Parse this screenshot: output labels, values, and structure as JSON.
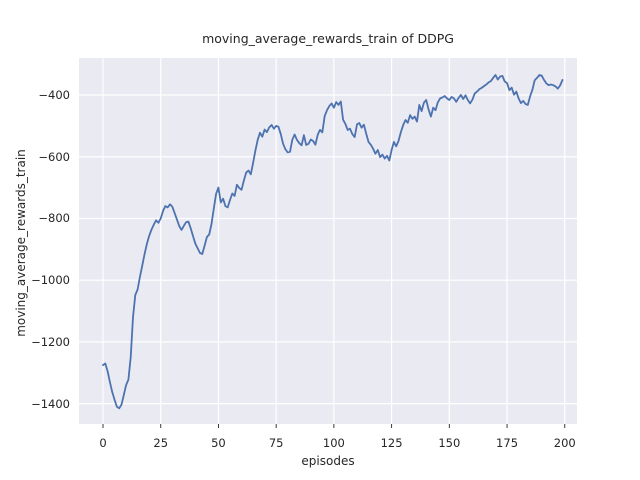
{
  "figure": {
    "title": "moving_average_rewards_train of DDPG",
    "xlabel": "episodes",
    "ylabel": "moving_average_rewards_train"
  },
  "axes": {
    "x_tick_labels": [
      "0",
      "25",
      "50",
      "75",
      "100",
      "125",
      "150",
      "175",
      "200"
    ],
    "y_tick_labels": [
      "−400",
      "−600",
      "−800",
      "−1000",
      "−1200",
      "−1400"
    ]
  },
  "colors": {
    "figure_bg": "#ffffff",
    "axes_bg": "#eaeaf2",
    "grid": "#ffffff",
    "line": "#4c72b0",
    "text": "#262626",
    "tick_mark": "#262626"
  },
  "chart_data": {
    "type": "line",
    "title": "moving_average_rewards_train of DDPG",
    "xlabel": "episodes",
    "ylabel": "moving_average_rewards_train",
    "legend": null,
    "grid": true,
    "x_tick_values": [
      0,
      25,
      50,
      75,
      100,
      125,
      150,
      175,
      200
    ],
    "y_tick_values": [
      -400,
      -600,
      -800,
      -1000,
      -1200,
      -1400
    ],
    "xlim": [
      -10.4,
      205.3
    ],
    "ylim": [
      -1466,
      -280
    ],
    "x_note": "x value = episode index of each point, 0..199",
    "values": [
      -1275,
      -1270,
      -1295,
      -1330,
      -1362,
      -1388,
      -1410,
      -1415,
      -1403,
      -1372,
      -1340,
      -1322,
      -1250,
      -1120,
      -1048,
      -1030,
      -988,
      -952,
      -915,
      -882,
      -856,
      -836,
      -820,
      -806,
      -814,
      -800,
      -776,
      -760,
      -764,
      -754,
      -762,
      -782,
      -803,
      -824,
      -837,
      -824,
      -812,
      -810,
      -832,
      -858,
      -882,
      -897,
      -912,
      -915,
      -888,
      -860,
      -852,
      -818,
      -768,
      -720,
      -700,
      -748,
      -736,
      -760,
      -764,
      -740,
      -719,
      -727,
      -691,
      -701,
      -707,
      -678,
      -651,
      -645,
      -657,
      -620,
      -580,
      -545,
      -522,
      -535,
      -512,
      -520,
      -505,
      -497,
      -509,
      -500,
      -503,
      -527,
      -558,
      -576,
      -586,
      -584,
      -545,
      -528,
      -545,
      -556,
      -563,
      -530,
      -562,
      -558,
      -544,
      -549,
      -561,
      -529,
      -513,
      -521,
      -468,
      -449,
      -436,
      -427,
      -441,
      -423,
      -432,
      -421,
      -480,
      -494,
      -513,
      -509,
      -527,
      -536,
      -495,
      -491,
      -506,
      -496,
      -525,
      -552,
      -561,
      -574,
      -590,
      -578,
      -601,
      -593,
      -606,
      -597,
      -612,
      -578,
      -552,
      -566,
      -549,
      -521,
      -497,
      -481,
      -490,
      -465,
      -477,
      -470,
      -486,
      -432,
      -452,
      -425,
      -416,
      -446,
      -470,
      -441,
      -449,
      -424,
      -411,
      -408,
      -403,
      -411,
      -416,
      -406,
      -411,
      -422,
      -409,
      -400,
      -413,
      -401,
      -416,
      -427,
      -415,
      -395,
      -389,
      -381,
      -377,
      -371,
      -366,
      -359,
      -355,
      -344,
      -335,
      -350,
      -340,
      -338,
      -356,
      -361,
      -384,
      -376,
      -399,
      -389,
      -411,
      -426,
      -419,
      -429,
      -432,
      -404,
      -383,
      -352,
      -344,
      -335,
      -337,
      -351,
      -362,
      -368,
      -366,
      -368,
      -372,
      -379,
      -369,
      -351
    ]
  }
}
